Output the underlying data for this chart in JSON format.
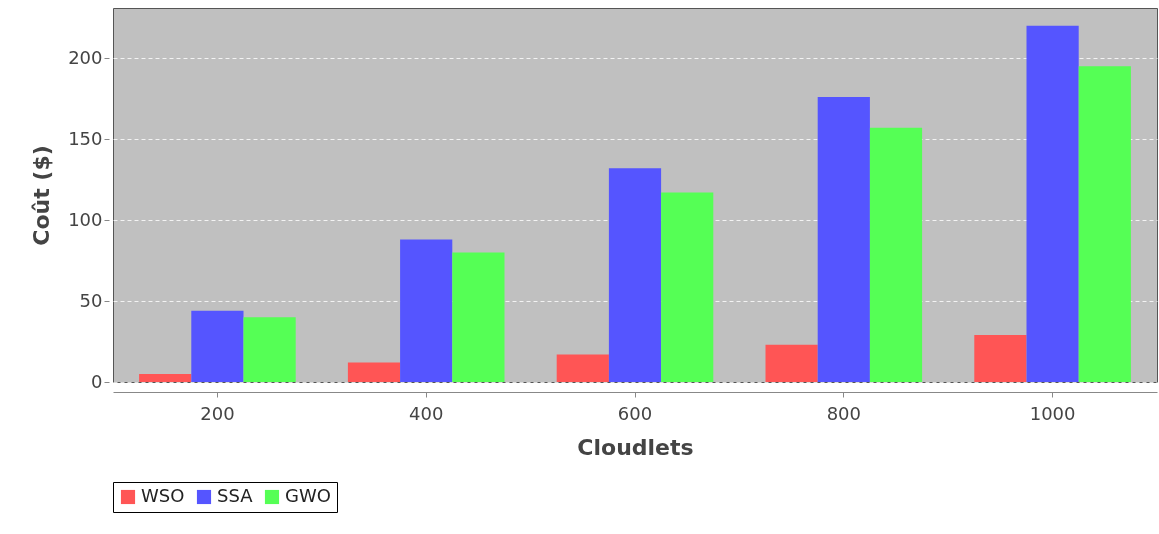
{
  "chart_data": {
    "type": "bar",
    "xlabel": "Cloudlets",
    "ylabel": "Coût ($)",
    "categories": [
      "200",
      "400",
      "600",
      "800",
      "1000"
    ],
    "series": [
      {
        "name": "WSO",
        "color": "#ff5555",
        "values": [
          5,
          12,
          17,
          23,
          29
        ]
      },
      {
        "name": "SSA",
        "color": "#5555ff",
        "values": [
          44,
          88,
          132,
          176,
          220
        ]
      },
      {
        "name": "GWO",
        "color": "#55ff55",
        "values": [
          40,
          80,
          117,
          157,
          195
        ]
      }
    ],
    "ylim": [
      0,
      231
    ],
    "yticks": [
      0,
      50,
      100,
      150,
      200
    ],
    "grid": "y",
    "legend": "bottom"
  }
}
